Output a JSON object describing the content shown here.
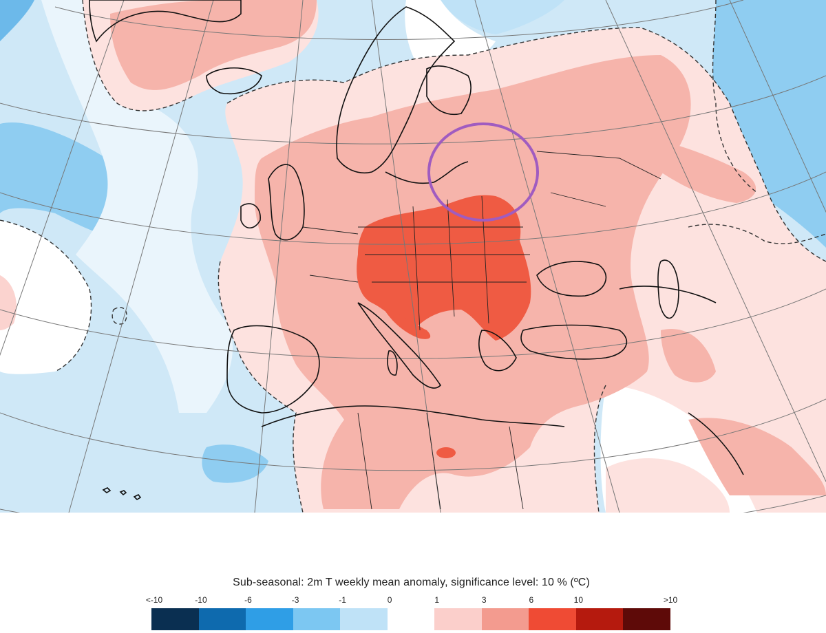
{
  "title": "Sub-seasonal: 2m T weekly mean anomaly, significance level: 10 % (ºC)",
  "legend": {
    "tick_labels": [
      "<-10",
      "-10",
      "-6",
      "-3",
      "-1",
      "0",
      "1",
      "3",
      "6",
      "10",
      ">10"
    ],
    "colors": [
      "#0a2f51",
      "#0e6aae",
      "#2f9ee6",
      "#7cc7f2",
      "#bfe2f7",
      "#ffffff",
      "#fbcfcb",
      "#f39b8f",
      "#ef4b34",
      "#b51a0e",
      "#5e0a08"
    ]
  },
  "map": {
    "background_ocean_color": "#d6ebf7",
    "annotation_circle_color": "#a05cc0"
  }
}
